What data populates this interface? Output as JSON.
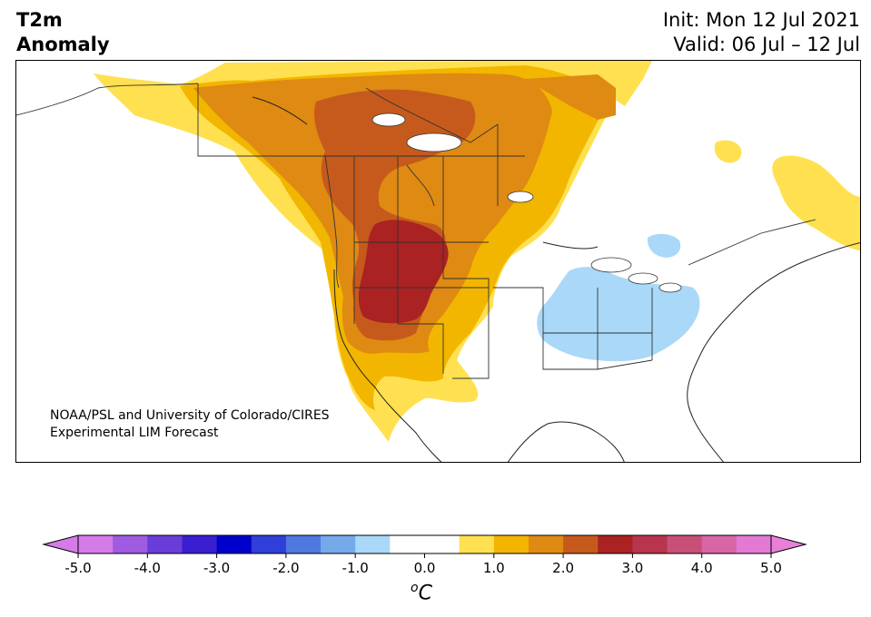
{
  "header": {
    "variable": "T2m",
    "type": "Anomaly",
    "init": "Init: Mon 12 Jul 2021",
    "valid": "Valid: 06 Jul – 12 Jul"
  },
  "credit": {
    "line1": "NOAA/PSL and University of Colorado/CIRES",
    "line2": "Experimental LIM Forecast"
  },
  "colorbar": {
    "unit_base": "C",
    "unit_sup": "o",
    "ticks": [
      "-5.0",
      "-4.0",
      "-3.0",
      "-2.0",
      "-1.0",
      "0.0",
      "1.0",
      "2.0",
      "3.0",
      "4.0",
      "5.0"
    ],
    "colors": [
      "#d57be8",
      "#a05ce0",
      "#6a3dd8",
      "#3a1fd0",
      "#0000cc",
      "#2f3fd8",
      "#4f78e0",
      "#74aaea",
      "#aad8f8",
      "#ffffff",
      "#ffffff",
      "#ffe050",
      "#f2b600",
      "#df8a12",
      "#c65a1c",
      "#aa2222",
      "#b8354e",
      "#c85078",
      "#d866a6",
      "#e27ad4"
    ],
    "extend_min_color": "#d57be8",
    "extend_max_color": "#e880d8"
  },
  "map_colors": {
    "anomaly_0_5_to_1": "#ffe050",
    "anomaly_1_to_1_5": "#f2b600",
    "anomaly_1_5_to_2": "#df8a12",
    "anomaly_2_to_2_5": "#c65a1c",
    "anomaly_2_5_to_3": "#aa2222",
    "anomaly_neg_0_5_to_neg_1": "#aad8f8"
  }
}
